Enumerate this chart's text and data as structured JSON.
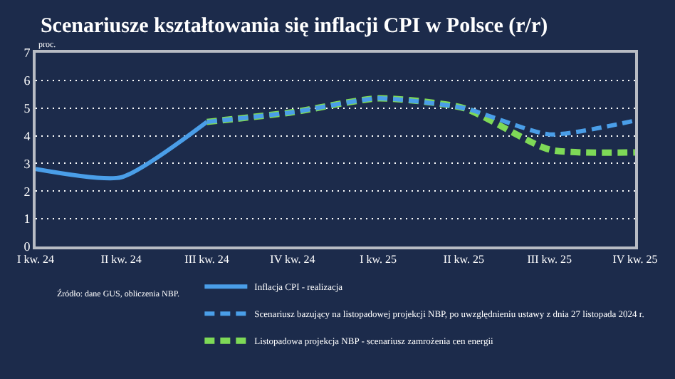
{
  "chart_data": {
    "type": "line",
    "title": "Scenariusze kształtowania się inflacji CPI w Polsce (r/r)",
    "ylabel": "proc.",
    "categories": [
      "I kw. 24",
      "II kw. 24",
      "III kw. 24",
      "IV kw. 24",
      "I kw. 25",
      "II kw. 25",
      "III kw. 25",
      "IV kw. 25"
    ],
    "series": [
      {
        "name": "Inflacja CPI - realizacja",
        "color": "#4a9ee8",
        "line_style": "solid",
        "values": [
          2.8,
          2.5,
          4.5,
          null,
          null,
          null,
          null,
          null
        ]
      },
      {
        "name": "Listopadowa projekcja NBP - scenariusz zamrożenia cen energii",
        "color": "#7ed957",
        "line_style": "dashed",
        "values": [
          null,
          null,
          4.5,
          4.85,
          5.35,
          5.0,
          3.5,
          3.4
        ]
      },
      {
        "name": "Scenariusz bazujący na listopadowej projekcji NBP, po uwzględnieniu ustawy z dnia 27 listopada 2024 r.",
        "color": "#4a9ee8",
        "line_style": "dashed",
        "values": [
          null,
          null,
          4.5,
          4.85,
          5.35,
          5.0,
          4.05,
          4.55
        ]
      }
    ],
    "ylim": [
      0,
      7
    ],
    "yticks": [
      0,
      1,
      2,
      3,
      4,
      5,
      6,
      7
    ],
    "grid": "y",
    "legend": "bottom",
    "marker": "none",
    "annotations": [
      "Źródło: dane GUS, obliczenia NBP."
    ]
  }
}
